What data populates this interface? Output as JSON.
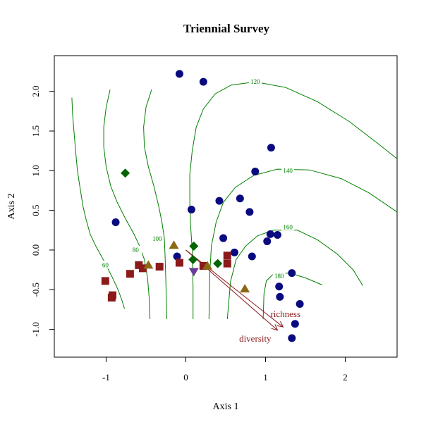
{
  "chart_data": {
    "type": "scatter",
    "title": "Triennial Survey",
    "xlabel": "Axis 1",
    "ylabel": "Axis 2",
    "xlim": [
      -1.65,
      2.65
    ],
    "ylim": [
      -1.35,
      2.45
    ],
    "xticks": [
      -1,
      0,
      1,
      2
    ],
    "yticks": [
      -1.0,
      -0.5,
      0.0,
      0.5,
      1.0,
      1.5,
      2.0
    ],
    "xtick_labels": [
      "-1",
      "0",
      "1",
      "2"
    ],
    "ytick_labels": [
      "-1.0",
      "-0.5",
      "0.0",
      "0.5",
      "1.0",
      "1.5",
      "2.0"
    ],
    "grid": false,
    "colors": {
      "circle": "#0a0a80",
      "square": "#8b1a1a",
      "diamond": "#006400",
      "triangle": "#8b6914",
      "triangle_down": "#6a3d9a",
      "contour": "#008000",
      "vector": "#8b1a1a"
    },
    "series": [
      {
        "marker": "circle",
        "points": [
          [
            -0.08,
            2.22
          ],
          [
            0.22,
            2.12
          ],
          [
            1.07,
            1.29
          ],
          [
            0.87,
            0.99
          ],
          [
            0.07,
            0.51
          ],
          [
            0.42,
            0.62
          ],
          [
            0.68,
            0.65
          ],
          [
            0.8,
            0.48
          ],
          [
            -0.88,
            0.35
          ],
          [
            0.47,
            0.15
          ],
          [
            1.06,
            0.2
          ],
          [
            1.15,
            0.19
          ],
          [
            1.02,
            0.11
          ],
          [
            0.61,
            -0.03
          ],
          [
            0.83,
            -0.08
          ],
          [
            -0.11,
            -0.08
          ],
          [
            1.33,
            -0.29
          ],
          [
            1.17,
            -0.46
          ],
          [
            1.18,
            -0.59
          ],
          [
            1.43,
            -0.68
          ],
          [
            1.37,
            -0.93
          ],
          [
            1.33,
            -1.11
          ]
        ]
      },
      {
        "marker": "square",
        "points": [
          [
            -1.01,
            -0.39
          ],
          [
            -0.92,
            -0.57
          ],
          [
            -0.93,
            -0.6
          ],
          [
            -0.7,
            -0.3
          ],
          [
            -0.59,
            -0.19
          ],
          [
            -0.54,
            -0.23
          ],
          [
            -0.33,
            -0.21
          ],
          [
            -0.08,
            -0.16
          ],
          [
            0.22,
            -0.2
          ],
          [
            0.52,
            -0.07
          ],
          [
            0.52,
            -0.17
          ]
        ]
      },
      {
        "marker": "diamond",
        "points": [
          [
            -0.76,
            0.97
          ],
          [
            0.1,
            0.05
          ],
          [
            0.09,
            -0.12
          ],
          [
            0.4,
            -0.17
          ]
        ]
      },
      {
        "marker": "triangle",
        "points": [
          [
            -0.47,
            -0.19
          ],
          [
            -0.15,
            0.06
          ],
          [
            0.27,
            -0.2
          ],
          [
            0.74,
            -0.49
          ]
        ]
      },
      {
        "marker": "triangle_down",
        "points": [
          [
            0.1,
            -0.27
          ]
        ]
      }
    ],
    "contours": [
      {
        "level": "60",
        "path": [
          [
            -1.43,
            1.92
          ],
          [
            -1.42,
            1.7
          ],
          [
            -1.4,
            1.45
          ],
          [
            -1.38,
            1.22
          ],
          [
            -1.36,
            1.0
          ],
          [
            -1.33,
            0.8
          ],
          [
            -1.29,
            0.55
          ],
          [
            -1.25,
            0.38
          ],
          [
            -1.2,
            0.2
          ],
          [
            -1.13,
            0.05
          ],
          [
            -1.02,
            -0.15
          ],
          [
            -0.93,
            -0.33
          ],
          [
            -0.85,
            -0.5
          ],
          [
            -0.8,
            -0.64
          ],
          [
            -0.77,
            -0.74
          ]
        ],
        "label_at": [
          -1.01,
          -0.19
        ]
      },
      {
        "level": "80",
        "path": [
          [
            -0.95,
            2.02
          ],
          [
            -1.0,
            1.8
          ],
          [
            -1.03,
            1.55
          ],
          [
            -1.03,
            1.3
          ],
          [
            -1.0,
            1.05
          ],
          [
            -0.94,
            0.8
          ],
          [
            -0.86,
            0.6
          ],
          [
            -0.76,
            0.4
          ],
          [
            -0.65,
            0.2
          ],
          [
            -0.58,
            0.05
          ],
          [
            -0.52,
            -0.12
          ],
          [
            -0.48,
            -0.35
          ],
          [
            -0.46,
            -0.6
          ],
          [
            -0.45,
            -0.87
          ]
        ],
        "label_at": [
          -0.63,
          0.0
        ]
      },
      {
        "level": "100",
        "path": [
          [
            -0.43,
            2.02
          ],
          [
            -0.5,
            1.8
          ],
          [
            -0.53,
            1.55
          ],
          [
            -0.52,
            1.3
          ],
          [
            -0.47,
            1.05
          ],
          [
            -0.4,
            0.8
          ],
          [
            -0.34,
            0.55
          ],
          [
            -0.3,
            0.35
          ],
          [
            -0.27,
            0.15
          ],
          [
            -0.26,
            -0.08
          ],
          [
            -0.25,
            -0.4
          ],
          [
            -0.24,
            -0.87
          ]
        ],
        "label_at": [
          -0.36,
          0.14
        ]
      },
      {
        "level": "120",
        "path": [
          [
            2.65,
            1.15
          ],
          [
            2.4,
            1.35
          ],
          [
            2.05,
            1.62
          ],
          [
            1.65,
            1.87
          ],
          [
            1.25,
            2.05
          ],
          [
            0.87,
            2.12
          ],
          [
            0.57,
            2.08
          ],
          [
            0.37,
            1.97
          ],
          [
            0.22,
            1.78
          ],
          [
            0.13,
            1.55
          ],
          [
            0.08,
            1.25
          ],
          [
            0.05,
            0.95
          ],
          [
            0.05,
            0.6
          ],
          [
            0.06,
            0.3
          ],
          [
            0.08,
            0.0
          ],
          [
            0.09,
            -0.45
          ],
          [
            0.09,
            -0.87
          ]
        ],
        "label_at": [
          0.87,
          2.12
        ]
      },
      {
        "level": "140",
        "path": [
          [
            2.65,
            0.48
          ],
          [
            2.3,
            0.72
          ],
          [
            1.95,
            0.9
          ],
          [
            1.55,
            1.01
          ],
          [
            1.15,
            1.02
          ],
          [
            0.85,
            0.94
          ],
          [
            0.62,
            0.79
          ],
          [
            0.47,
            0.6
          ],
          [
            0.38,
            0.35
          ],
          [
            0.32,
            0.05
          ],
          [
            0.3,
            -0.3
          ],
          [
            0.29,
            -0.87
          ]
        ],
        "label_at": [
          1.28,
          1.0
        ]
      },
      {
        "level": "160",
        "path": [
          [
            2.22,
            -0.45
          ],
          [
            2.1,
            -0.25
          ],
          [
            1.9,
            -0.05
          ],
          [
            1.65,
            0.13
          ],
          [
            1.4,
            0.25
          ],
          [
            1.1,
            0.25
          ],
          [
            0.9,
            0.18
          ],
          [
            0.75,
            0.05
          ],
          [
            0.63,
            -0.12
          ],
          [
            0.56,
            -0.4
          ],
          [
            0.52,
            -0.87
          ]
        ],
        "label_at": [
          1.28,
          0.29
        ]
      },
      {
        "level": "180",
        "path": [
          [
            1.71,
            -0.44
          ],
          [
            1.5,
            -0.35
          ],
          [
            1.3,
            -0.29
          ],
          [
            1.1,
            -0.3
          ],
          [
            1.01,
            -0.39
          ],
          [
            0.98,
            -0.55
          ],
          [
            0.97,
            -0.87
          ]
        ],
        "label_at": [
          1.17,
          -0.33
        ]
      }
    ],
    "vectors": [
      {
        "name": "richness",
        "from": [
          0.0,
          0.0
        ],
        "to": [
          1.22,
          -0.97
        ],
        "label_at": [
          1.25,
          -0.81
        ]
      },
      {
        "name": "diversity",
        "from": [
          0.0,
          0.0
        ],
        "to": [
          1.15,
          -1.01
        ],
        "label_at": [
          0.87,
          -1.12
        ]
      }
    ]
  }
}
